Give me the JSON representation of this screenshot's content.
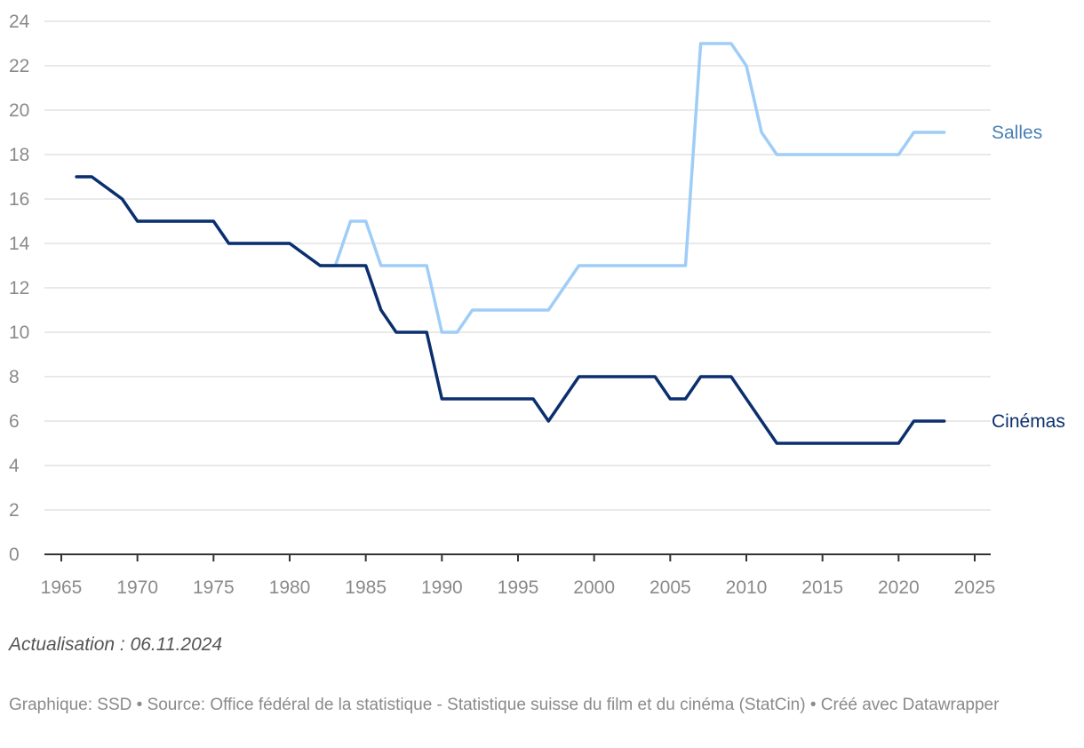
{
  "chart_data": {
    "type": "line",
    "title": "",
    "xlabel": "",
    "ylabel": "",
    "xlim": [
      1965,
      2025
    ],
    "ylim": [
      0,
      24
    ],
    "x_ticks": [
      1965,
      1970,
      1975,
      1980,
      1985,
      1990,
      1995,
      2000,
      2005,
      2010,
      2015,
      2020,
      2025
    ],
    "y_ticks": [
      0,
      2,
      4,
      6,
      8,
      10,
      12,
      14,
      16,
      18,
      20,
      22,
      24
    ],
    "grid": true,
    "x": [
      1966,
      1967,
      1968,
      1969,
      1970,
      1971,
      1972,
      1973,
      1974,
      1975,
      1976,
      1977,
      1978,
      1979,
      1980,
      1981,
      1982,
      1983,
      1984,
      1985,
      1986,
      1987,
      1988,
      1989,
      1990,
      1991,
      1992,
      1993,
      1994,
      1995,
      1996,
      1997,
      1998,
      1999,
      2000,
      2001,
      2002,
      2003,
      2004,
      2005,
      2006,
      2007,
      2008,
      2009,
      2010,
      2011,
      2012,
      2013,
      2014,
      2015,
      2016,
      2017,
      2018,
      2019,
      2020,
      2021,
      2022,
      2023
    ],
    "series": [
      {
        "name": "Salles",
        "color": "#9fcdf7",
        "label_color": "#4a7fb5",
        "values": [
          17,
          17,
          16.5,
          16,
          15,
          15,
          15,
          15,
          15,
          15,
          14,
          14,
          14,
          14,
          14,
          13.5,
          13,
          13,
          15,
          15,
          13,
          13,
          13,
          13,
          10,
          10,
          11,
          11,
          11,
          11,
          11,
          11,
          12,
          13,
          13,
          13,
          13,
          13,
          13,
          13,
          13,
          23,
          23,
          23,
          22,
          19,
          18,
          18,
          18,
          18,
          18,
          18,
          18,
          18,
          18,
          19,
          19,
          19
        ]
      },
      {
        "name": "Cinémas",
        "color": "#0b2f6e",
        "label_color": "#0b2f6e",
        "values": [
          17,
          17,
          16.5,
          16,
          15,
          15,
          15,
          15,
          15,
          15,
          14,
          14,
          14,
          14,
          14,
          13.5,
          13,
          13,
          13,
          13,
          11,
          10,
          10,
          10,
          7,
          7,
          7,
          7,
          7,
          7,
          7,
          6,
          7,
          8,
          8,
          8,
          8,
          8,
          8,
          7,
          7,
          8,
          8,
          8,
          7,
          6,
          5,
          5,
          5,
          5,
          5,
          5,
          5,
          5,
          5,
          6,
          6,
          6
        ]
      }
    ]
  },
  "notes": {
    "update": "Actualisation : 06.11.2024",
    "footer": "Graphique: SSD • Source: Office fédéral de la statistique - Statistique suisse du film et du cinéma (StatCin)  • Créé avec Datawrapper"
  }
}
